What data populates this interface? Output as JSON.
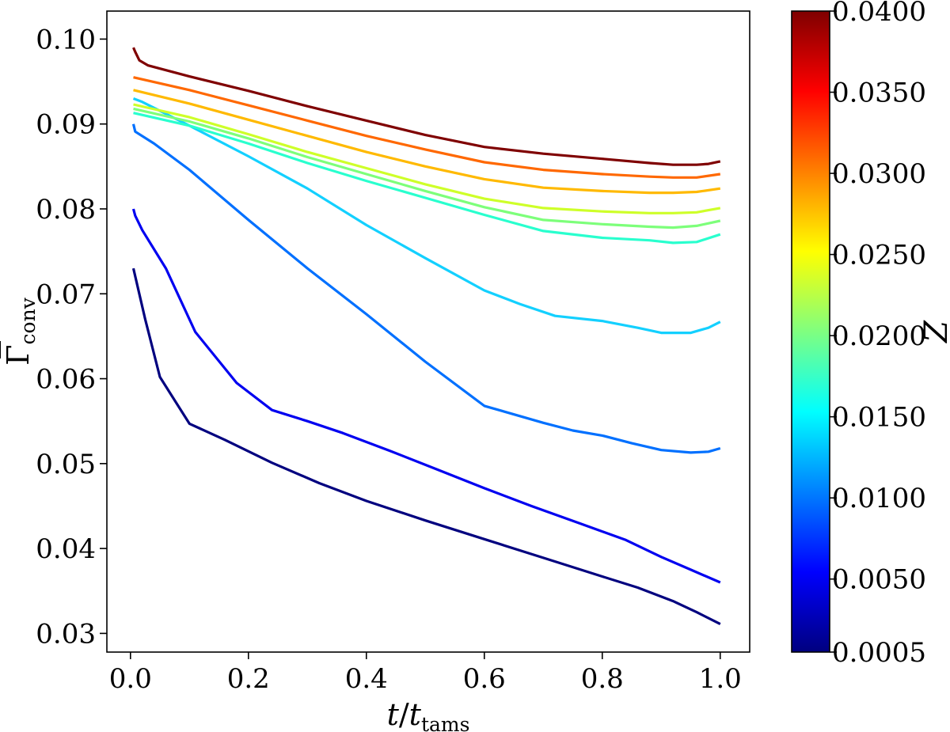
{
  "chart_data": {
    "type": "line",
    "xlabel": "t/t_tams",
    "ylabel": "Γ̄_conv",
    "xlim": [
      -0.04,
      1.05
    ],
    "ylim": [
      0.0278,
      0.1033
    ],
    "grid": false,
    "xticks": [
      0.0,
      0.2,
      0.4,
      0.6,
      0.8,
      1.0
    ],
    "xtick_labels": [
      "0.0",
      "0.2",
      "0.4",
      "0.6",
      "0.8",
      "1.0"
    ],
    "yticks": [
      0.03,
      0.04,
      0.05,
      0.06,
      0.07,
      0.08,
      0.09,
      0.1
    ],
    "ytick_labels": [
      "0.03",
      "0.04",
      "0.05",
      "0.06",
      "0.07",
      "0.08",
      "0.09",
      "0.10"
    ],
    "colorbar": {
      "label": "Z",
      "colormap": "jet",
      "range": [
        0.0005,
        0.04
      ],
      "ticks": [
        0.0005,
        0.005,
        0.01,
        0.015,
        0.02,
        0.025,
        0.03,
        0.035,
        0.04
      ],
      "tick_labels": [
        "0.0005",
        "0.0050",
        "0.0100",
        "0.0150",
        "0.0200",
        "0.0250",
        "0.0300",
        "0.0350",
        "0.0400"
      ]
    },
    "series": [
      {
        "z": 0.0005,
        "color": "#00007f",
        "x": [
          0.005,
          0.025,
          0.05,
          0.1,
          0.16,
          0.24,
          0.32,
          0.4,
          0.5,
          0.6,
          0.7,
          0.8,
          0.86,
          0.92,
          0.96,
          1.0
        ],
        "y": [
          0.073,
          0.067,
          0.0602,
          0.0547,
          0.0528,
          0.0501,
          0.0477,
          0.0456,
          0.0433,
          0.0411,
          0.0389,
          0.0367,
          0.0354,
          0.0338,
          0.0325,
          0.0311
        ]
      },
      {
        "z": 0.005,
        "color": "#0000f0",
        "x": [
          0.005,
          0.008,
          0.02,
          0.06,
          0.11,
          0.18,
          0.24,
          0.3,
          0.36,
          0.44,
          0.52,
          0.6,
          0.68,
          0.76,
          0.84,
          0.9,
          0.95,
          1.0
        ],
        "y": [
          0.08,
          0.0792,
          0.0775,
          0.073,
          0.0655,
          0.0595,
          0.0563,
          0.055,
          0.0536,
          0.0515,
          0.0493,
          0.0471,
          0.045,
          0.043,
          0.041,
          0.039,
          0.0375,
          0.036
        ]
      },
      {
        "z": 0.01,
        "color": "#0070ff",
        "x": [
          0.005,
          0.008,
          0.04,
          0.1,
          0.2,
          0.3,
          0.4,
          0.5,
          0.6,
          0.7,
          0.75,
          0.8,
          0.85,
          0.9,
          0.95,
          0.98,
          1.0
        ],
        "y": [
          0.09,
          0.0891,
          0.0877,
          0.0846,
          0.0787,
          0.073,
          0.0676,
          0.062,
          0.0568,
          0.0548,
          0.0539,
          0.0533,
          0.0524,
          0.0516,
          0.0513,
          0.0514,
          0.0518
        ]
      },
      {
        "z": 0.015,
        "color": "#13d0ff",
        "x": [
          0.005,
          0.02,
          0.1,
          0.2,
          0.3,
          0.4,
          0.5,
          0.6,
          0.66,
          0.72,
          0.8,
          0.86,
          0.9,
          0.95,
          0.98,
          1.0
        ],
        "y": [
          0.093,
          0.0926,
          0.0898,
          0.0862,
          0.0824,
          0.0781,
          0.0742,
          0.0704,
          0.0688,
          0.0674,
          0.0668,
          0.066,
          0.0654,
          0.0654,
          0.066,
          0.0667
        ]
      },
      {
        "z": 0.0175,
        "color": "#29ffce",
        "x": [
          0.005,
          0.1,
          0.2,
          0.3,
          0.4,
          0.5,
          0.6,
          0.7,
          0.8,
          0.88,
          0.92,
          0.96,
          1.0
        ],
        "y": [
          0.0913,
          0.0898,
          0.0877,
          0.0854,
          0.0833,
          0.0813,
          0.0793,
          0.0774,
          0.0766,
          0.0763,
          0.076,
          0.0761,
          0.077
        ]
      },
      {
        "z": 0.02,
        "color": "#7dff7a",
        "x": [
          0.005,
          0.1,
          0.2,
          0.3,
          0.4,
          0.5,
          0.6,
          0.7,
          0.8,
          0.88,
          0.92,
          0.96,
          1.0
        ],
        "y": [
          0.0918,
          0.0903,
          0.0883,
          0.0861,
          0.0841,
          0.0821,
          0.0802,
          0.0787,
          0.0782,
          0.0779,
          0.0778,
          0.078,
          0.0786
        ]
      },
      {
        "z": 0.025,
        "color": "#ceff29",
        "x": [
          0.005,
          0.1,
          0.2,
          0.3,
          0.4,
          0.5,
          0.6,
          0.7,
          0.8,
          0.88,
          0.92,
          0.96,
          1.0
        ],
        "y": [
          0.0923,
          0.0908,
          0.0888,
          0.0867,
          0.0848,
          0.0829,
          0.0812,
          0.0801,
          0.0797,
          0.0795,
          0.0795,
          0.0796,
          0.0801
        ]
      },
      {
        "z": 0.03,
        "color": "#ffb900",
        "x": [
          0.005,
          0.1,
          0.2,
          0.3,
          0.4,
          0.5,
          0.6,
          0.7,
          0.8,
          0.88,
          0.92,
          0.96,
          1.0
        ],
        "y": [
          0.094,
          0.0924,
          0.0905,
          0.0886,
          0.0867,
          0.085,
          0.0835,
          0.0825,
          0.0821,
          0.0819,
          0.0819,
          0.082,
          0.0824
        ]
      },
      {
        "z": 0.035,
        "color": "#ff6800",
        "x": [
          0.005,
          0.1,
          0.2,
          0.3,
          0.4,
          0.5,
          0.6,
          0.7,
          0.8,
          0.88,
          0.92,
          0.96,
          1.0
        ],
        "y": [
          0.0955,
          0.094,
          0.0922,
          0.0904,
          0.0886,
          0.087,
          0.0855,
          0.0846,
          0.0841,
          0.0838,
          0.0837,
          0.0837,
          0.0841
        ]
      },
      {
        "z": 0.04,
        "color": "#7f0000",
        "x": [
          0.005,
          0.008,
          0.015,
          0.03,
          0.1,
          0.2,
          0.3,
          0.4,
          0.5,
          0.6,
          0.7,
          0.8,
          0.88,
          0.92,
          0.96,
          0.98,
          1.0
        ],
        "y": [
          0.099,
          0.0985,
          0.0975,
          0.0969,
          0.0956,
          0.0939,
          0.0921,
          0.0904,
          0.0887,
          0.0873,
          0.0865,
          0.0859,
          0.0854,
          0.0852,
          0.0852,
          0.0853,
          0.0856
        ]
      }
    ]
  }
}
